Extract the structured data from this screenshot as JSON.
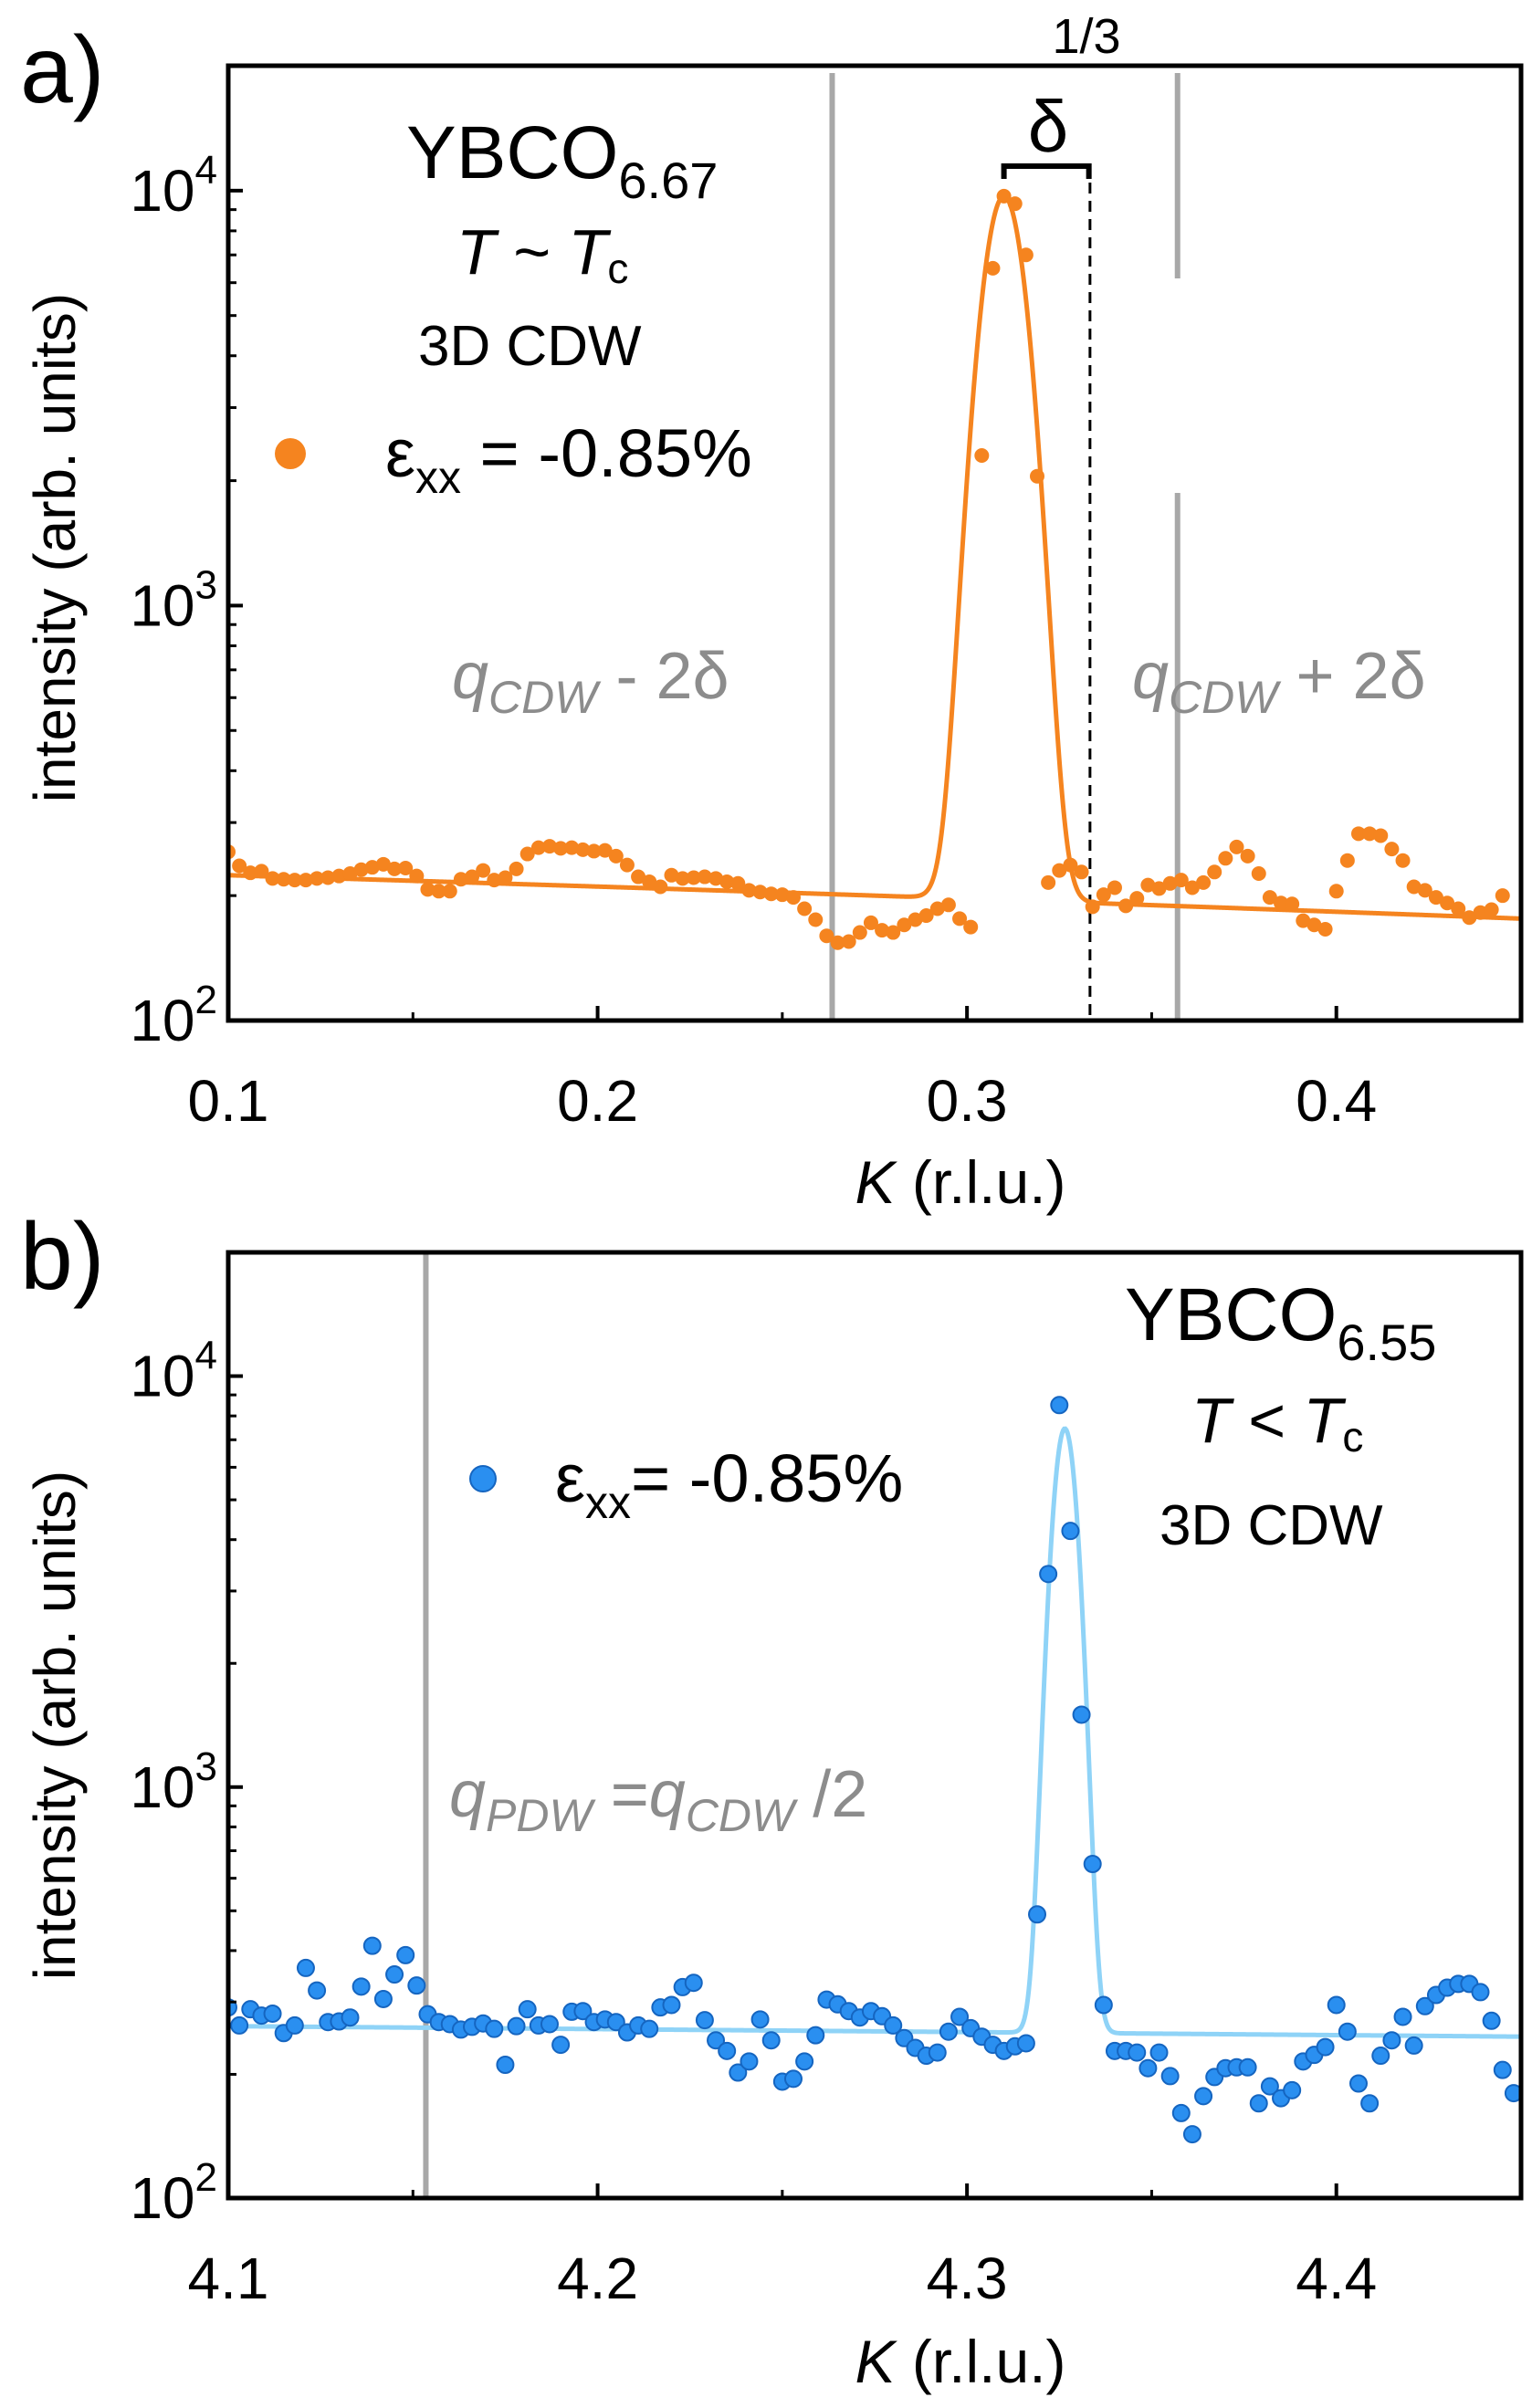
{
  "colors": {
    "orange": "#f5841f",
    "blue_fill": "#2a8ff0",
    "blue_edge": "#1565c0",
    "blue_line": "#8fd3f7",
    "grey": "#a8a8a8",
    "grey_text": "#8c8c8c"
  },
  "chart_data": [
    {
      "type": "scatter",
      "panel_label": "a)",
      "title": "",
      "xlabel_italic": "K",
      "xlabel_rest": " (r.l.u.)",
      "ylabel": "intensity (arb. units)",
      "xlim": [
        0.1,
        0.45
      ],
      "ylim": [
        100,
        20000
      ],
      "yscale": "log",
      "xticks": [
        0.1,
        0.2,
        0.3,
        0.4
      ],
      "xtick_labels": [
        "0.1",
        "0.2",
        "0.3",
        "0.4"
      ],
      "yticks": [
        100,
        1000,
        10000
      ],
      "ytick_base": "10",
      "ytick_exponents": [
        "2",
        "3",
        "4"
      ],
      "annotations": {
        "sample_base": "YBCO",
        "sample_sub": "6.67",
        "temp_T": "T",
        "temp_rel": " ~ ",
        "temp_Tc": "T",
        "temp_sub": "c",
        "cdw": "3D CDW",
        "legend_eps": "ε",
        "legend_sub": "xx",
        "legend_val": " = -0.85%",
        "minus_q": "q",
        "minus_sub": "CDW",
        "minus_rest": " - 2δ",
        "plus_q": "q",
        "plus_sub": "CDW",
        "plus_rest": " + 2δ",
        "delta": "δ",
        "third": "1/3"
      },
      "vlines_grey": [
        0.2635,
        0.357
      ],
      "vline_dashed": 0.3333,
      "delta_bracket": [
        0.31,
        0.333
      ],
      "series": [
        {
          "name": "εxx = -0.85%",
          "color": "orange",
          "points": [
            [
              0.1,
              255
            ],
            [
              0.103,
              236
            ],
            [
              0.106,
              227
            ],
            [
              0.109,
              229
            ],
            [
              0.112,
              220
            ],
            [
              0.115,
              219
            ],
            [
              0.118,
              218
            ],
            [
              0.121,
              218
            ],
            [
              0.124,
              220
            ],
            [
              0.127,
              221
            ],
            [
              0.13,
              223
            ],
            [
              0.133,
              226
            ],
            [
              0.136,
              231
            ],
            [
              0.139,
              234
            ],
            [
              0.142,
              238
            ],
            [
              0.145,
              232
            ],
            [
              0.148,
              233
            ],
            [
              0.151,
              223
            ],
            [
              0.154,
              207
            ],
            [
              0.157,
              205
            ],
            [
              0.16,
              205
            ],
            [
              0.163,
              219
            ],
            [
              0.166,
              222
            ],
            [
              0.169,
              230
            ],
            [
              0.172,
              218
            ],
            [
              0.175,
              221
            ],
            [
              0.178,
              232
            ],
            [
              0.181,
              252
            ],
            [
              0.184,
              261
            ],
            [
              0.187,
              263
            ],
            [
              0.19,
              260
            ],
            [
              0.193,
              261
            ],
            [
              0.196,
              258
            ],
            [
              0.199,
              256
            ],
            [
              0.202,
              257
            ],
            [
              0.205,
              249
            ],
            [
              0.208,
              237
            ],
            [
              0.211,
              222
            ],
            [
              0.214,
              216
            ],
            [
              0.217,
              210
            ],
            [
              0.22,
              224
            ],
            [
              0.223,
              220
            ],
            [
              0.226,
              221
            ],
            [
              0.229,
              222
            ],
            [
              0.232,
              220
            ],
            [
              0.235,
              216
            ],
            [
              0.238,
              214
            ],
            [
              0.241,
              206
            ],
            [
              0.244,
              204
            ],
            [
              0.247,
              202
            ],
            [
              0.25,
              201
            ],
            [
              0.253,
              198
            ],
            [
              0.256,
              186
            ],
            [
              0.259,
              175
            ],
            [
              0.262,
              160
            ],
            [
              0.265,
              154
            ],
            [
              0.268,
              155
            ],
            [
              0.271,
              163
            ],
            [
              0.274,
              172
            ],
            [
              0.277,
              165
            ],
            [
              0.28,
              163
            ],
            [
              0.283,
              170
            ],
            [
              0.286,
              175
            ],
            [
              0.289,
              179
            ],
            [
              0.292,
              186
            ],
            [
              0.295,
              190
            ],
            [
              0.298,
              176
            ],
            [
              0.301,
              168
            ],
            [
              0.304,
              2300
            ],
            [
              0.307,
              6500
            ],
            [
              0.31,
              9700
            ],
            [
              0.313,
              9300
            ],
            [
              0.316,
              7000
            ],
            [
              0.319,
              2050
            ],
            [
              0.322,
              215
            ],
            [
              0.325,
              230
            ],
            [
              0.328,
              237
            ],
            [
              0.331,
              228
            ],
            [
              0.334,
              188
            ],
            [
              0.337,
              201
            ],
            [
              0.34,
              209
            ],
            [
              0.343,
              189
            ],
            [
              0.346,
              197
            ],
            [
              0.349,
              212
            ],
            [
              0.352,
              208
            ],
            [
              0.355,
              214
            ],
            [
              0.358,
              218
            ],
            [
              0.361,
              209
            ],
            [
              0.364,
              215
            ],
            [
              0.367,
              228
            ],
            [
              0.37,
              246
            ],
            [
              0.373,
              262
            ],
            [
              0.376,
              249
            ],
            [
              0.379,
              226
            ],
            [
              0.382,
              198
            ],
            [
              0.385,
              192
            ],
            [
              0.388,
              191
            ],
            [
              0.391,
              174
            ],
            [
              0.394,
              170
            ],
            [
              0.397,
              166
            ],
            [
              0.4,
              205
            ],
            [
              0.403,
              243
            ],
            [
              0.406,
              282
            ],
            [
              0.409,
              282
            ],
            [
              0.412,
              279
            ],
            [
              0.415,
              259
            ],
            [
              0.418,
              243
            ],
            [
              0.421,
              210
            ],
            [
              0.424,
              206
            ],
            [
              0.427,
              198
            ],
            [
              0.43,
              192
            ],
            [
              0.433,
              186
            ],
            [
              0.436,
              177
            ],
            [
              0.439,
              182
            ],
            [
              0.442,
              185
            ],
            [
              0.445,
              200
            ]
          ],
          "fit": {
            "background": [
              [
                0.1,
                224
              ],
              [
                0.45,
                176
              ]
            ],
            "peak_center": 0.31,
            "peak_amp": 9500,
            "peak_sigma": 0.0055
          }
        }
      ]
    },
    {
      "type": "scatter",
      "panel_label": "b)",
      "title": "",
      "xlabel_italic": "K",
      "xlabel_rest": " (r.l.u.)",
      "ylabel": "intensity (arb. units)",
      "xlim": [
        4.1,
        4.45
      ],
      "ylim": [
        100,
        20000
      ],
      "yscale": "log",
      "xticks": [
        4.1,
        4.2,
        4.3,
        4.4
      ],
      "xtick_labels": [
        "4.1",
        "4.2",
        "4.3",
        "4.4"
      ],
      "yticks": [
        100,
        1000,
        10000
      ],
      "ytick_base": "10",
      "ytick_exponents": [
        "2",
        "3",
        "4"
      ],
      "annotations": {
        "sample_base": "YBCO",
        "sample_sub": "6.55",
        "temp_T": "T",
        "temp_rel": " < ",
        "temp_Tc": "T",
        "temp_sub": "c",
        "cdw": "3D CDW",
        "legend_eps": "ε",
        "legend_sub": "xx",
        "legend_val": "=  -0.85%",
        "pdw_q1": "q",
        "pdw_sub1": "PDW",
        "pdw_mid": " =",
        "pdw_q2": "q",
        "pdw_sub2": "CDW",
        "pdw_rest": " /2"
      },
      "vlines_grey": [
        4.1535
      ],
      "series": [
        {
          "name": "εxx= -0.85%",
          "color": "blue",
          "points": [
            [
              4.1,
              291
            ],
            [
              4.103,
              263
            ],
            [
              4.106,
              288
            ],
            [
              4.109,
              278
            ],
            [
              4.112,
              281
            ],
            [
              4.115,
              252
            ],
            [
              4.118,
              263
            ],
            [
              4.121,
              363
            ],
            [
              4.124,
              320
            ],
            [
              4.127,
              268
            ],
            [
              4.13,
              269
            ],
            [
              4.133,
              275
            ],
            [
              4.136,
              327
            ],
            [
              4.139,
              411
            ],
            [
              4.142,
              305
            ],
            [
              4.145,
              350
            ],
            [
              4.148,
              390
            ],
            [
              4.151,
              329
            ],
            [
              4.154,
              280
            ],
            [
              4.157,
              268
            ],
            [
              4.16,
              265
            ],
            [
              4.163,
              257
            ],
            [
              4.166,
              261
            ],
            [
              4.169,
              266
            ],
            [
              4.172,
              258
            ],
            [
              4.175,
              211
            ],
            [
              4.178,
              262
            ],
            [
              4.181,
              288
            ],
            [
              4.184,
              263
            ],
            [
              4.187,
              265
            ],
            [
              4.19,
              236
            ],
            [
              4.193,
              284
            ],
            [
              4.196,
              285
            ],
            [
              4.199,
              268
            ],
            [
              4.202,
              272
            ],
            [
              4.205,
              268
            ],
            [
              4.208,
              253
            ],
            [
              4.211,
              263
            ],
            [
              4.214,
              258
            ],
            [
              4.217,
              291
            ],
            [
              4.22,
              295
            ],
            [
              4.223,
              326
            ],
            [
              4.226,
              334
            ],
            [
              4.229,
              271
            ],
            [
              4.232,
              242
            ],
            [
              4.235,
              228
            ],
            [
              4.238,
              202
            ],
            [
              4.241,
              215
            ],
            [
              4.244,
              272
            ],
            [
              4.247,
              242
            ],
            [
              4.25,
              192
            ],
            [
              4.253,
              195
            ],
            [
              4.256,
              215
            ],
            [
              4.259,
              249
            ],
            [
              4.262,
              304
            ],
            [
              4.265,
              296
            ],
            [
              4.268,
              285
            ],
            [
              4.271,
              275
            ],
            [
              4.274,
              285
            ],
            [
              4.277,
              277
            ],
            [
              4.28,
              263
            ],
            [
              4.283,
              245
            ],
            [
              4.286,
              232
            ],
            [
              4.289,
              222
            ],
            [
              4.292,
              226
            ],
            [
              4.295,
              254
            ],
            [
              4.298,
              276
            ],
            [
              4.301,
              259
            ],
            [
              4.304,
              247
            ],
            [
              4.307,
              236
            ],
            [
              4.31,
              228
            ],
            [
              4.313,
              234
            ],
            [
              4.316,
              238
            ],
            [
              4.319,
              490
            ],
            [
              4.322,
              3300
            ],
            [
              4.325,
              8500
            ],
            [
              4.328,
              4200
            ],
            [
              4.331,
              1500
            ],
            [
              4.334,
              650
            ],
            [
              4.337,
              295
            ],
            [
              4.34,
              228
            ],
            [
              4.343,
              228
            ],
            [
              4.346,
              226
            ],
            [
              4.349,
              207
            ],
            [
              4.352,
              226
            ],
            [
              4.355,
              198
            ],
            [
              4.358,
              161
            ],
            [
              4.361,
              143
            ],
            [
              4.364,
              177
            ],
            [
              4.367,
              197
            ],
            [
              4.37,
              207
            ],
            [
              4.373,
              208
            ],
            [
              4.376,
              208
            ],
            [
              4.379,
              170
            ],
            [
              4.382,
              187
            ],
            [
              4.385,
              175
            ],
            [
              4.388,
              183
            ],
            [
              4.391,
              215
            ],
            [
              4.394,
              223
            ],
            [
              4.397,
              233
            ],
            [
              4.4,
              295
            ],
            [
              4.403,
              254
            ],
            [
              4.406,
              190
            ],
            [
              4.409,
              170
            ],
            [
              4.412,
              222
            ],
            [
              4.415,
              242
            ],
            [
              4.418,
              276
            ],
            [
              4.421,
              235
            ],
            [
              4.424,
              293
            ],
            [
              4.427,
              312
            ],
            [
              4.43,
              325
            ],
            [
              4.433,
              332
            ],
            [
              4.436,
              332
            ],
            [
              4.439,
              317
            ],
            [
              4.442,
              270
            ],
            [
              4.445,
              205
            ],
            [
              4.448,
              180
            ]
          ],
          "fit": {
            "background": [
              [
                4.1,
                262
              ],
              [
                4.45,
                247
              ]
            ],
            "peak_center": 4.3265,
            "peak_amp": 7200,
            "peak_sigma": 0.0032
          }
        }
      ]
    }
  ]
}
